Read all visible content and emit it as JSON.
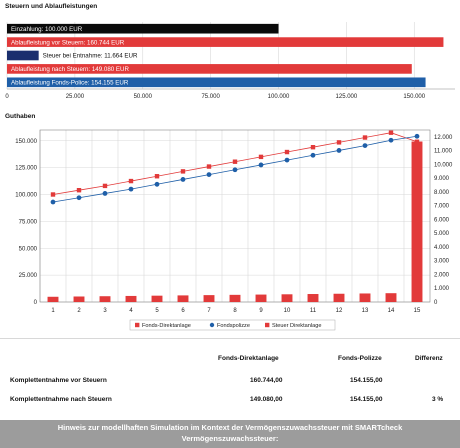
{
  "colors": {
    "black_bar": "#0a0a0a",
    "red": "#e23a3a",
    "blue": "#1f5fa8",
    "navy": "#1b2f6e",
    "light_red": "#ff6a6a",
    "grid": "#d8d8d8"
  },
  "chart_data": [
    {
      "type": "bar",
      "orientation": "horizontal",
      "title": "Steuern und Ablaufleistungen",
      "xlim": [
        0,
        165000
      ],
      "xticks": [
        0,
        25000,
        50000,
        75000,
        100000,
        125000,
        150000
      ],
      "xtick_labels": [
        "0",
        "25.000",
        "50.000",
        "75.000",
        "100.000",
        "125.000",
        "150.000"
      ],
      "grid": true,
      "bars": [
        {
          "label": "Einzahlung: 100.000 EUR",
          "value": 100000,
          "color": "#0a0a0a"
        },
        {
          "label": "Ablaufleistung vor Steuern: 160.744 EUR",
          "value": 160744,
          "color": "#e23a3a"
        },
        {
          "label": "Steuer bei Entnahme: 11.664 EUR",
          "value": 11664,
          "color": "#1b2f6e"
        },
        {
          "label": "Ablaufleistung nach Steuern: 149.080 EUR",
          "value": 149080,
          "color": "#e23a3a"
        },
        {
          "label": "Ablaufleistung Fonds-Police: 154.155 EUR",
          "value": 154155,
          "color": "#1f5fa8"
        }
      ]
    },
    {
      "type": "line",
      "title": "Guthaben",
      "categories": [
        "1",
        "2",
        "3",
        "4",
        "5",
        "6",
        "7",
        "8",
        "9",
        "10",
        "11",
        "12",
        "13",
        "14",
        "15"
      ],
      "ylim": [
        0,
        160000
      ],
      "yticks": [
        0,
        25000,
        50000,
        75000,
        100000,
        125000,
        150000
      ],
      "ytick_labels": [
        "0",
        "25.000",
        "50.000",
        "75.000",
        "100.000",
        "125.000",
        "150.000"
      ],
      "y2lim": [
        0,
        12500
      ],
      "y2ticks": [
        0,
        1000,
        2000,
        3000,
        4000,
        5000,
        6000,
        7000,
        8000,
        9000,
        10000,
        11000,
        12000
      ],
      "y2tick_labels": [
        "0",
        "1.000",
        "2.000",
        "3.000",
        "4.000",
        "5.000",
        "6.000",
        "7.000",
        "8.000",
        "9.000",
        "10.000",
        "11.000",
        "12.000"
      ],
      "grid": true,
      "legend": "bottom",
      "series": [
        {
          "name": "Fonds-Direktanlage",
          "kind": "line",
          "axis": "left",
          "color": "#e23a3a",
          "values": [
            100000,
            104000,
            108000,
            112500,
            117000,
            121500,
            126000,
            130500,
            135000,
            139500,
            144000,
            148500,
            153000,
            157500,
            149080
          ]
        },
        {
          "name": "Fondspolizze",
          "kind": "line",
          "axis": "left",
          "color": "#1f5fa8",
          "values": [
            93000,
            97000,
            101000,
            105000,
            109500,
            114000,
            118500,
            123000,
            127500,
            132000,
            136500,
            141000,
            145500,
            150500,
            154155
          ]
        },
        {
          "name": "Steuer Direktanlage",
          "kind": "bar",
          "axis": "right",
          "color": "#e23a3a",
          "values": [
            380,
            400,
            420,
            440,
            460,
            480,
            500,
            520,
            540,
            560,
            580,
            600,
            620,
            640,
            11664
          ]
        }
      ]
    }
  ],
  "summary": {
    "col_direkt": "Fonds-Direktanlage",
    "col_polizze": "Fonds-Polizze",
    "col_diff": "Differenz",
    "rows": [
      {
        "label": "Komplettentnahme vor Steuern",
        "direkt": "160.744,00",
        "polizze": "154.155,00",
        "diff": ""
      },
      {
        "label": "Komplettentnahme nach Steuern",
        "direkt": "149.080,00",
        "polizze": "154.155,00",
        "diff": "3 %"
      }
    ]
  },
  "notice": {
    "line1": "Hinweis zur modellhaften Simulation im Kontext der Vermögenszuwachssteuer mit SMARTcheck",
    "line2": "Vermögenszuwachssteuer:"
  }
}
